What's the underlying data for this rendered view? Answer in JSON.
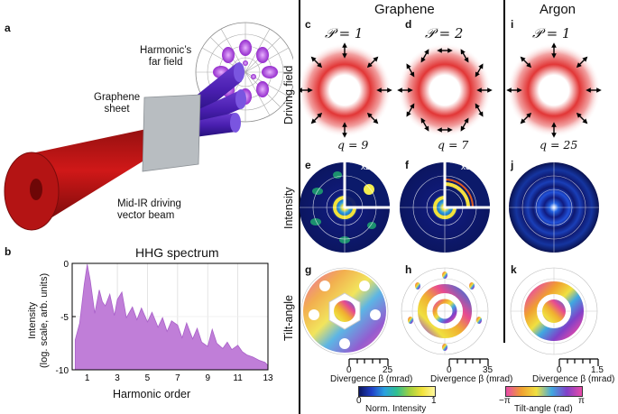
{
  "panel_letters": {
    "a": "a",
    "b": "b",
    "c": "c",
    "d": "d",
    "i": "i",
    "e": "e",
    "f": "f",
    "j": "j",
    "g": "g",
    "h": "h",
    "k": "k"
  },
  "headers": {
    "graphene": "Graphene",
    "argon": "Argon"
  },
  "schematic": {
    "far_field": "Harmonic’s\nfar field",
    "sheet": "Graphene\nsheet",
    "beam": "Mid-IR driving\nvector beam"
  },
  "row_labels": {
    "driving": "Driving field",
    "intensity": "Intensity",
    "tilt": "Tilt-angle"
  },
  "driving": [
    {
      "P": "𝒫 = 1",
      "q": "q = 9"
    },
    {
      "P": "𝒫 = 2",
      "q": "q = 7"
    },
    {
      "P": "𝒫 = 1",
      "q": "q = 25"
    }
  ],
  "zoom_badges": [
    "x2",
    "x3"
  ],
  "divergence_axes": [
    {
      "ticks": [
        "0",
        "25"
      ],
      "label": "Divergence β (mrad)"
    },
    {
      "ticks": [
        "0",
        "35"
      ],
      "label": "Divergence β (mrad)"
    },
    {
      "ticks": [
        "0",
        "1.5"
      ],
      "label": "Divergence β (mrad)"
    }
  ],
  "colorbars": {
    "intensity": {
      "min": "0",
      "max": "1",
      "label": "Norm. Intensity"
    },
    "tilt": {
      "min": "−π",
      "max": "π",
      "label": "Tilt-angle (rad)"
    }
  },
  "chart_data": {
    "type": "area",
    "title": "HHG spectrum",
    "xlabel": "Harmonic order",
    "ylabel": "Intensity\n(log. scale, arb. units)",
    "xlim": [
      0,
      13
    ],
    "ylim": [
      -10,
      0
    ],
    "xticks": [
      "1",
      "3",
      "5",
      "7",
      "9",
      "11",
      "13"
    ],
    "yticks": [
      "0",
      "-5",
      "-10"
    ],
    "grid": true,
    "color": "#c07ed8",
    "x": [
      0.2,
      0.5,
      0.8,
      1.0,
      1.2,
      1.5,
      1.8,
      2.0,
      2.2,
      2.5,
      2.8,
      3.0,
      3.3,
      3.6,
      4.0,
      4.3,
      4.6,
      5.0,
      5.3,
      5.7,
      6.0,
      6.3,
      6.6,
      7.0,
      7.3,
      7.6,
      8.0,
      8.3,
      8.6,
      9.0,
      9.3,
      9.6,
      10.0,
      10.3,
      10.6,
      11.0,
      11.3,
      11.6,
      12.0,
      12.4,
      12.8,
      13.0
    ],
    "y": [
      -7.2,
      -5.6,
      -2.0,
      -0.1,
      -1.6,
      -4.7,
      -2.5,
      -3.6,
      -4.0,
      -2.9,
      -4.9,
      -3.4,
      -2.7,
      -5.1,
      -4.1,
      -5.3,
      -4.2,
      -5.5,
      -4.6,
      -6.0,
      -5.1,
      -6.4,
      -5.4,
      -5.8,
      -7.0,
      -5.6,
      -7.1,
      -6.1,
      -7.4,
      -7.8,
      -6.2,
      -7.5,
      -8.0,
      -7.4,
      -8.1,
      -7.7,
      -8.3,
      -8.6,
      -8.8,
      -9.1,
      -9.3,
      -9.6
    ]
  }
}
